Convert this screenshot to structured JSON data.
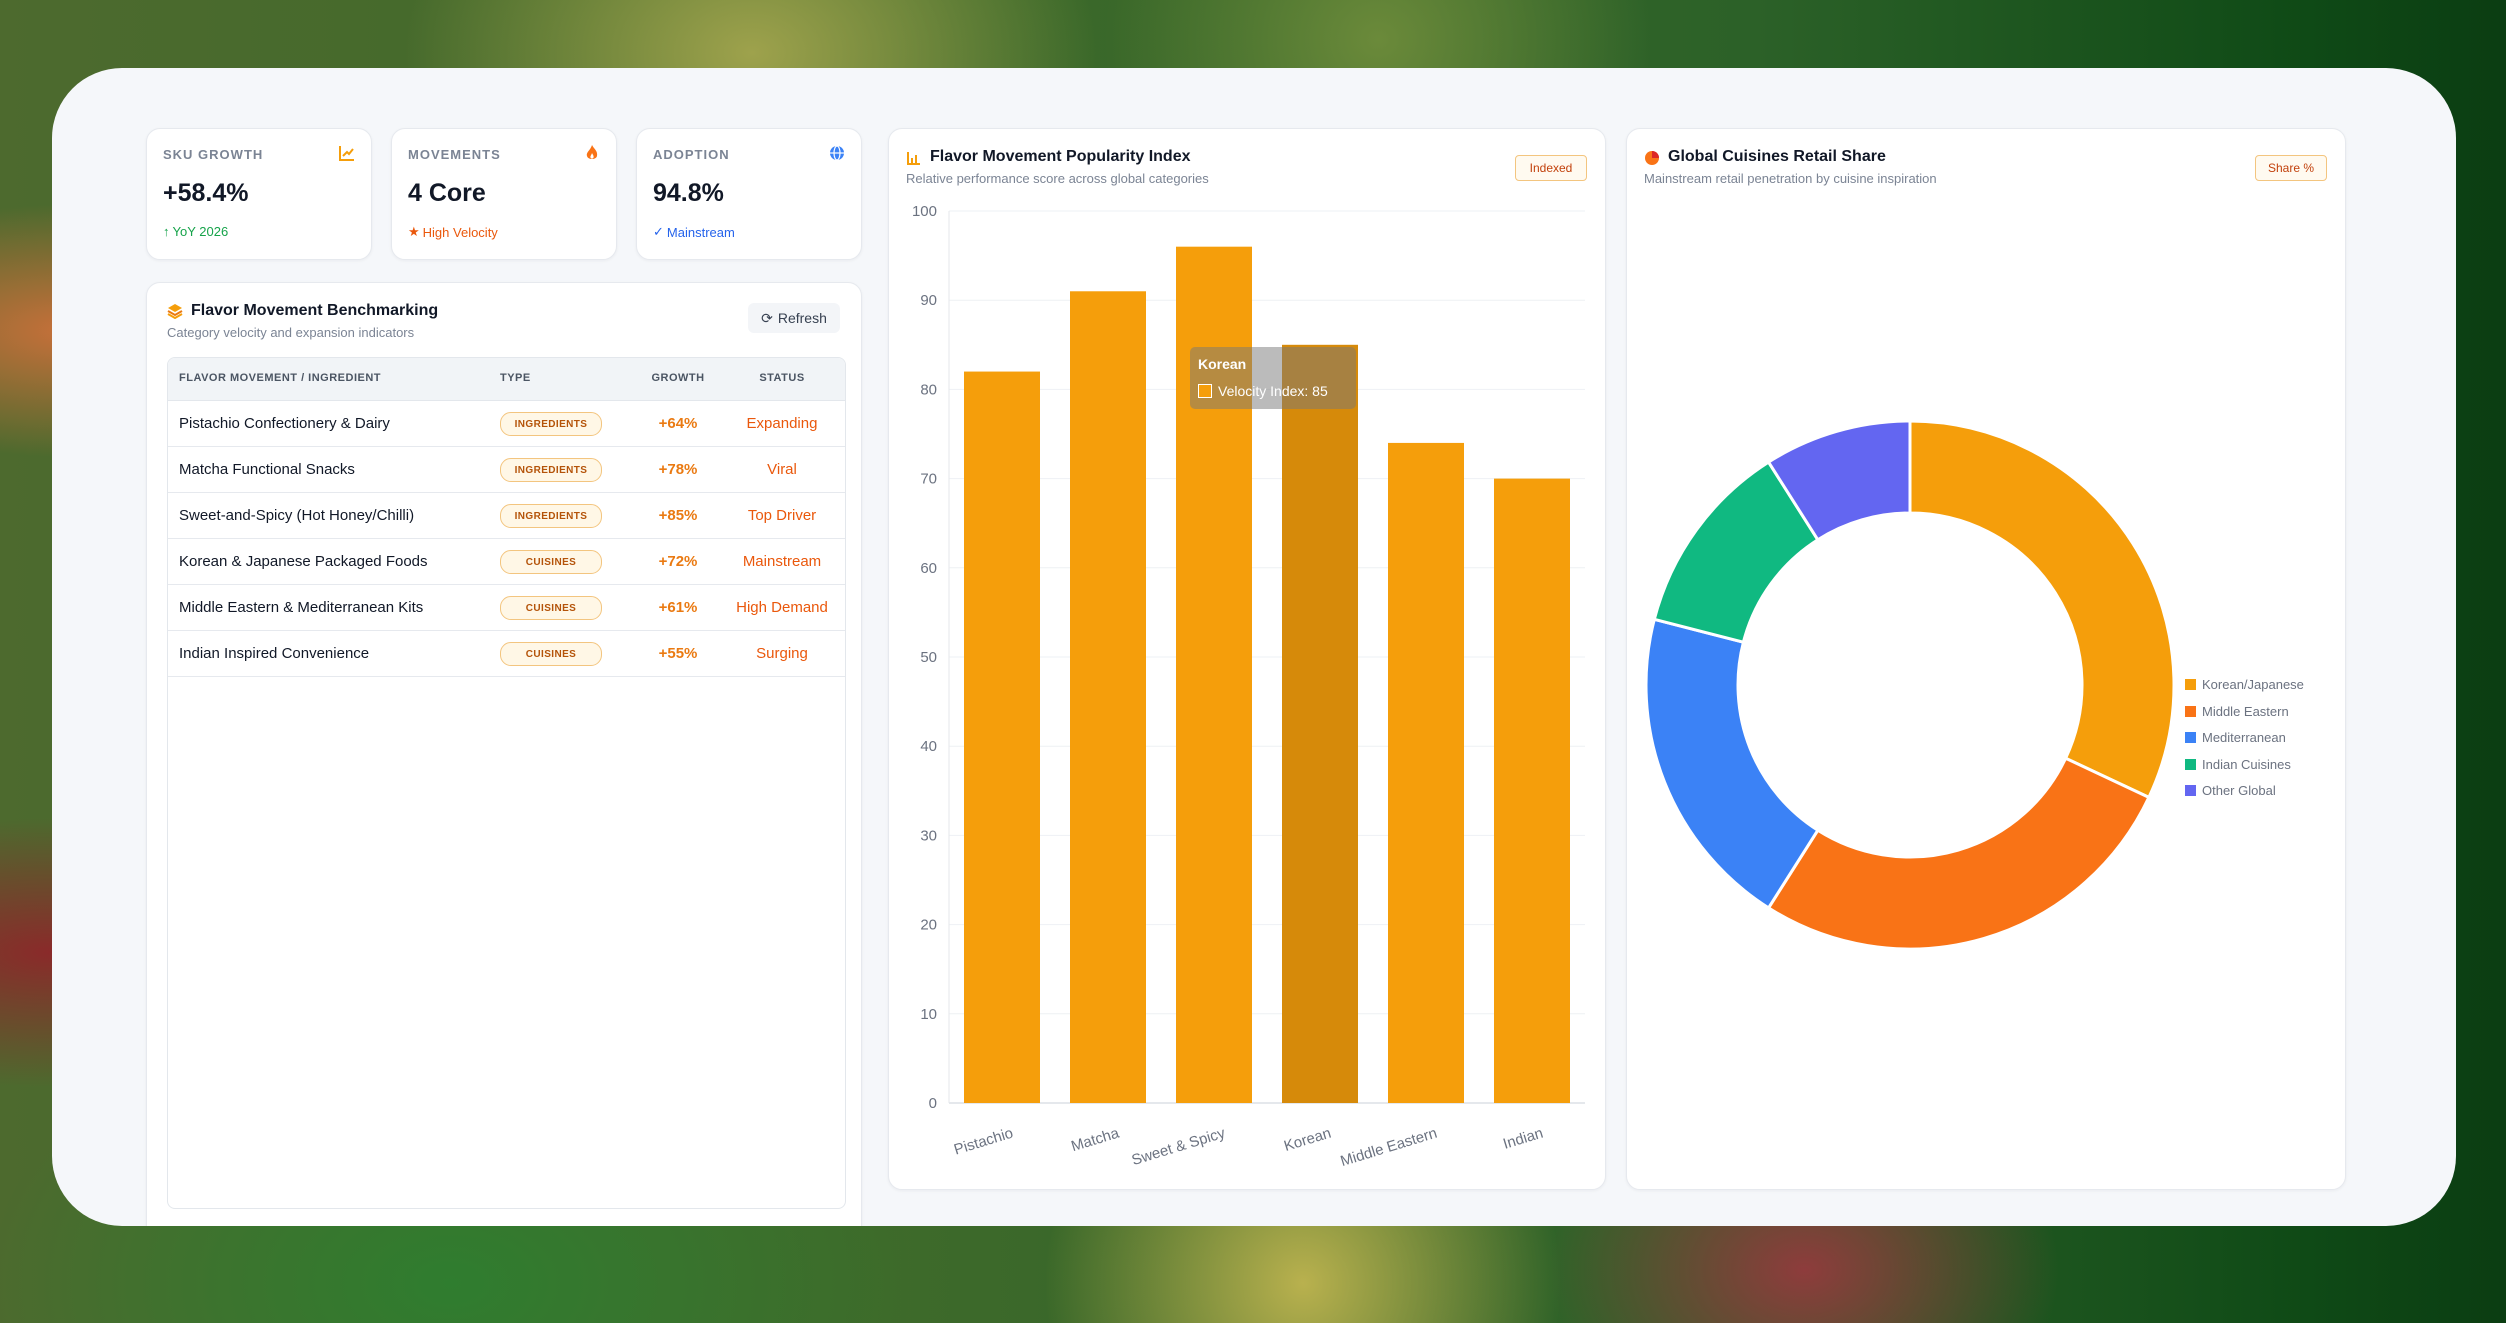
{
  "kpis": [
    {
      "label": "SKU GROWTH",
      "value": "+58.4%",
      "sub": "YoY 2026",
      "icon": "trend-chart-icon",
      "sub_icon": "arrow-up-icon",
      "sub_color": "#16a34a"
    },
    {
      "label": "MOVEMENTS",
      "value": "4 Core",
      "sub": "High Velocity",
      "icon": "fire-icon",
      "sub_icon": "star-icon",
      "sub_color": "#ea580c"
    },
    {
      "label": "ADOPTION",
      "value": "94.8%",
      "sub": "Mainstream",
      "icon": "globe-icon",
      "sub_icon": "check-icon",
      "sub_color": "#2563eb"
    }
  ],
  "benchmark": {
    "title": "Flavor Movement Benchmarking",
    "subtitle": "Category velocity and expansion indicators",
    "refresh_label": "Refresh",
    "columns": [
      "FLAVOR MOVEMENT / INGREDIENT",
      "TYPE",
      "GROWTH",
      "STATUS"
    ],
    "rows": [
      {
        "name": "Pistachio Confectionery & Dairy",
        "type": "INGREDIENTS",
        "growth": "+64%",
        "status": "Expanding"
      },
      {
        "name": "Matcha Functional Snacks",
        "type": "INGREDIENTS",
        "growth": "+78%",
        "status": "Viral"
      },
      {
        "name": "Sweet-and-Spicy (Hot Honey/Chilli)",
        "type": "INGREDIENTS",
        "growth": "+85%",
        "status": "Top Driver"
      },
      {
        "name": "Korean & Japanese Packaged Foods",
        "type": "CUISINES",
        "growth": "+72%",
        "status": "Mainstream"
      },
      {
        "name": "Middle Eastern & Mediterranean Kits",
        "type": "CUISINES",
        "growth": "+61%",
        "status": "High Demand"
      },
      {
        "name": "Indian Inspired Convenience",
        "type": "CUISINES",
        "growth": "+55%",
        "status": "Surging"
      }
    ]
  },
  "bar_panel": {
    "title": "Flavor Movement Popularity Index",
    "subtitle": "Relative performance score across global categories",
    "badge": "Indexed",
    "tooltip_title": "Korean",
    "tooltip_text": "Velocity Index: 85"
  },
  "pie_panel": {
    "title": "Global Cuisines Retail Share",
    "subtitle": "Mainstream retail penetration by cuisine inspiration",
    "badge": "Share %"
  },
  "chart_data": [
    {
      "type": "bar",
      "title": "Flavor Movement Popularity Index",
      "categories": [
        "Pistachio",
        "Matcha",
        "Sweet & Spicy",
        "Korean",
        "Middle Eastern",
        "Indian"
      ],
      "values": [
        82,
        91,
        96,
        85,
        74,
        70
      ],
      "ylim": [
        0,
        100
      ],
      "yticks": [
        0,
        10,
        20,
        30,
        40,
        50,
        60,
        70,
        80,
        90,
        100
      ],
      "grid": true,
      "color": "#f59e0b"
    },
    {
      "type": "pie",
      "title": "Global Cuisines Retail Share",
      "donut": true,
      "legend_position": "right",
      "labels": [
        "Korean/Japanese",
        "Middle Eastern",
        "Mediterranean",
        "Indian Cuisines",
        "Other Global"
      ],
      "values": [
        32,
        27,
        20,
        12,
        9
      ],
      "colors": [
        "#f59e0b",
        "#f97316",
        "#3b82f6",
        "#10b981",
        "#6366f1"
      ]
    }
  ],
  "colors": {
    "accent": "#f59e0b",
    "growth": "#ea7a12",
    "status": "#ea580c"
  }
}
